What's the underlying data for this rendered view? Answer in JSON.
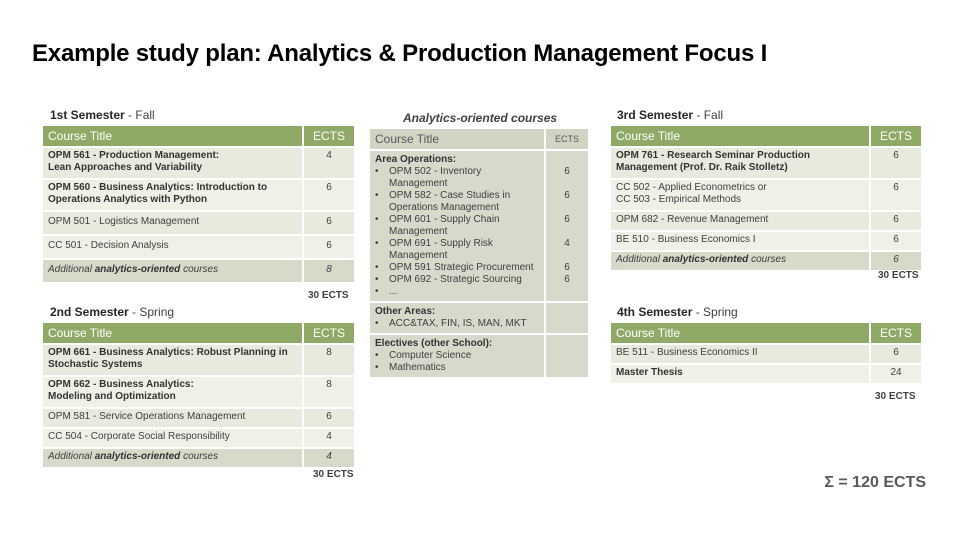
{
  "title": "Example study plan: Analytics & Production Management Focus I",
  "header_course": "Course Title",
  "header_ects": "ECTS",
  "sem1": {
    "name": "1st Semester",
    "term": " - Fall",
    "rows": [
      {
        "code": "OPM 561 - Production Management:",
        "rest": "Lean Approaches and Variability",
        "ects": "4",
        "bold": true
      },
      {
        "code": "OPM 560 - Business Analytics: Introduction to",
        "rest": "Operations Analytics with Python",
        "ects": "6",
        "bold": true
      },
      {
        "code": "OPM 501 - Logistics Management",
        "rest": "",
        "ects": "6",
        "bold": false
      },
      {
        "code": "CC 501 - Decision Analysis",
        "rest": "",
        "ects": "6",
        "bold": false
      }
    ],
    "additional_pre": "Additional ",
    "additional_bold": "analytics-oriented",
    "additional_post": " courses",
    "additional_ects": "8",
    "total": "30 ECTS"
  },
  "sem2": {
    "name": "2nd Semester",
    "term": " - Spring",
    "rows": [
      {
        "code": "OPM 661 - Business Analytics: Robust Planning in",
        "rest": "Stochastic Systems",
        "ects": "8",
        "bold": true
      },
      {
        "code": "OPM 662 - Business Analytics:",
        "rest": "Modeling and Optimization",
        "ects": "8",
        "bold": true
      },
      {
        "code": "OPM 581 - Service Operations Management",
        "rest": "",
        "ects": "6",
        "bold": false
      },
      {
        "code": "CC 504 - Corporate Social Responsibility",
        "rest": "",
        "ects": "4",
        "bold": false
      }
    ],
    "additional_pre": "Additional ",
    "additional_bold": "analytics-oriented",
    "additional_post": " courses",
    "additional_ects": "4",
    "total": "30 ECTS"
  },
  "sem3": {
    "name": "3rd Semester",
    "term": " - Fall",
    "rows": [
      {
        "code": "OPM 761 - Research Seminar Production",
        "rest": "Management (Prof. Dr. Raik Stolletz)",
        "ects": "6",
        "bold": true
      },
      {
        "code": "CC 502 - Applied Econometrics  or",
        "rest": "CC 503 - Empirical Methods",
        "ects": "6",
        "bold": false
      },
      {
        "code": "OPM 682 - Revenue Management",
        "rest": "",
        "ects": "6",
        "bold": false
      },
      {
        "code": "BE 510 - Business Economics I",
        "rest": "",
        "ects": "6",
        "bold": false
      }
    ],
    "additional_pre": "Additional ",
    "additional_bold": "analytics-oriented",
    "additional_post": " courses",
    "additional_ects": "6",
    "total": "30 ECTS"
  },
  "sem4": {
    "name": "4th Semester",
    "term": " - Spring",
    "rows": [
      {
        "code": "BE 511 - Business Economics II",
        "ects": "6"
      },
      {
        "code": "Master Thesis",
        "ects": "24"
      }
    ],
    "total": "30 ECTS"
  },
  "analytics": {
    "caption": "Analytics-oriented courses",
    "header_course": "Course Title",
    "header_ects": "ECTS",
    "bullet": "•",
    "area_ops": {
      "heading": "Area Operations:",
      "items": [
        {
          "label": "OPM 502 - Inventory Management",
          "ects": "6"
        },
        {
          "label": "OPM 582 - Case Studies in Operations Management",
          "ects": "6"
        },
        {
          "label": "OPM 601 - Supply Chain Management",
          "ects": "6"
        },
        {
          "label": "OPM 691 - Supply Risk Management",
          "ects": "4"
        },
        {
          "label": "OPM 591 Strategic Procurement",
          "ects": "6"
        },
        {
          "label": "OPM 692 - Strategic Sourcing",
          "ects": "6"
        },
        {
          "label": "...",
          "ects": ""
        }
      ]
    },
    "other": {
      "heading": "Other Areas:",
      "items": [
        "ACC&TAX, FIN, IS, MAN, MKT"
      ]
    },
    "electives": {
      "heading": "Electives (other School):",
      "items": [
        "Computer Science",
        "Mathematics"
      ]
    }
  },
  "sum": "Σ = 120 ECTS"
}
